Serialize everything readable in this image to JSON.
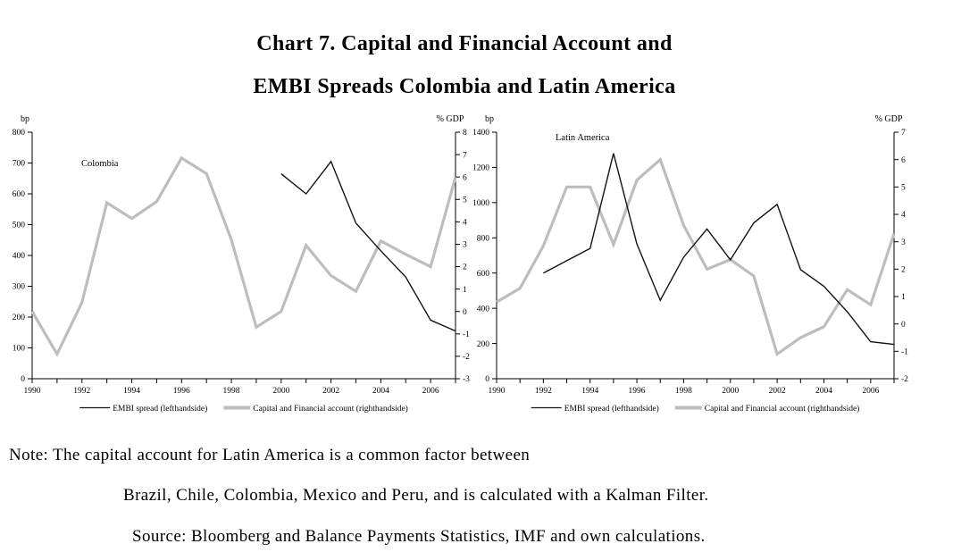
{
  "page": {
    "background": "#ffffff"
  },
  "title": {
    "line1": "Chart 7. Capital and Financial Account and",
    "line2": "EMBI Spreads Colombia and Latin America"
  },
  "note": {
    "line1": "Note: The capital account for Latin America is a common factor between",
    "line2": "Brazil, Chile, Colombia, Mexico and Peru, and is calculated with a Kalman Filter.",
    "line3": "Source: Bloomberg and Balance Payments Statistics, IMF and own calculations."
  },
  "colors": {
    "embi_line": "#121212",
    "capital_line": "#bdbdbd",
    "axis": "#000000",
    "text": "#000000"
  },
  "chart_data": [
    {
      "id": "colombia",
      "type": "line",
      "title": "Colombia",
      "left_axis_label": "bp",
      "right_axis_label": "% GDP",
      "x_range": [
        1990,
        2007
      ],
      "x_tick_labels": [
        1990,
        1992,
        1994,
        1996,
        1998,
        2000,
        2002,
        2004,
        2006
      ],
      "left_ylim": [
        0,
        800
      ],
      "left_ticks": [
        0,
        100,
        200,
        300,
        400,
        500,
        600,
        700,
        800
      ],
      "right_ylim": [
        -3,
        8
      ],
      "right_ticks": [
        -3,
        -2,
        -1,
        0,
        1,
        2,
        3,
        4,
        5,
        6,
        7,
        8
      ],
      "grid": false,
      "legend_position": "bottom",
      "series": [
        {
          "name": "Capital and Financial account (righthandside)",
          "axis": "right",
          "unit": "% GDP",
          "x": [
            1990,
            1991,
            1992,
            1993,
            1994,
            1995,
            1996,
            1997,
            1998,
            1999,
            2000,
            2001,
            2002,
            2003,
            2004,
            2005,
            2006,
            2007
          ],
          "values": [
            0.0,
            -1.9,
            0.4,
            4.85,
            4.15,
            4.9,
            6.85,
            6.15,
            3.2,
            -0.7,
            0.0,
            2.95,
            1.6,
            0.9,
            3.15,
            2.55,
            2.0,
            6.0
          ]
        },
        {
          "name": "EMBI spread (lefthandside)",
          "axis": "left",
          "unit": "bp",
          "x": [
            2000,
            2001,
            2002,
            2003,
            2004,
            2005,
            2006,
            2007
          ],
          "values": [
            665,
            600,
            705,
            505,
            415,
            330,
            190,
            155
          ]
        }
      ]
    },
    {
      "id": "latin-america",
      "type": "line",
      "title": "Latin America",
      "left_axis_label": "bp",
      "right_axis_label": "% GDP",
      "x_range": [
        1990,
        2007
      ],
      "x_tick_labels": [
        1990,
        1992,
        1994,
        1996,
        1998,
        2000,
        2002,
        2004,
        2006
      ],
      "left_ylim": [
        0,
        1400
      ],
      "left_ticks": [
        0,
        200,
        400,
        600,
        800,
        1000,
        1200,
        1400
      ],
      "right_ylim": [
        -2,
        7
      ],
      "right_ticks": [
        -2,
        -1,
        0,
        1,
        2,
        3,
        4,
        5,
        6,
        7
      ],
      "grid": false,
      "legend_position": "bottom",
      "series": [
        {
          "name": "Capital and Financial account (righthandside)",
          "axis": "right",
          "unit": "% GDP",
          "x": [
            1990,
            1991,
            1992,
            1993,
            1994,
            1995,
            1996,
            1997,
            1998,
            1999,
            2000,
            2001,
            2002,
            2003,
            2004,
            2005,
            2006,
            2007
          ],
          "values": [
            0.8,
            1.3,
            2.85,
            5.0,
            5.0,
            2.9,
            5.25,
            6.0,
            3.6,
            2.0,
            2.35,
            1.75,
            -1.1,
            -0.5,
            -0.1,
            1.25,
            0.7,
            3.3
          ]
        },
        {
          "name": "EMBI spread (lefthandside)",
          "axis": "left",
          "unit": "bp",
          "x": [
            1992,
            1993,
            1994,
            1995,
            1996,
            1997,
            1998,
            1999,
            2000,
            2001,
            2002,
            2003,
            2004,
            2005,
            2006,
            2007
          ],
          "values": [
            600,
            670,
            740,
            1280,
            765,
            445,
            690,
            850,
            675,
            885,
            990,
            620,
            525,
            380,
            210,
            195
          ]
        }
      ]
    }
  ]
}
